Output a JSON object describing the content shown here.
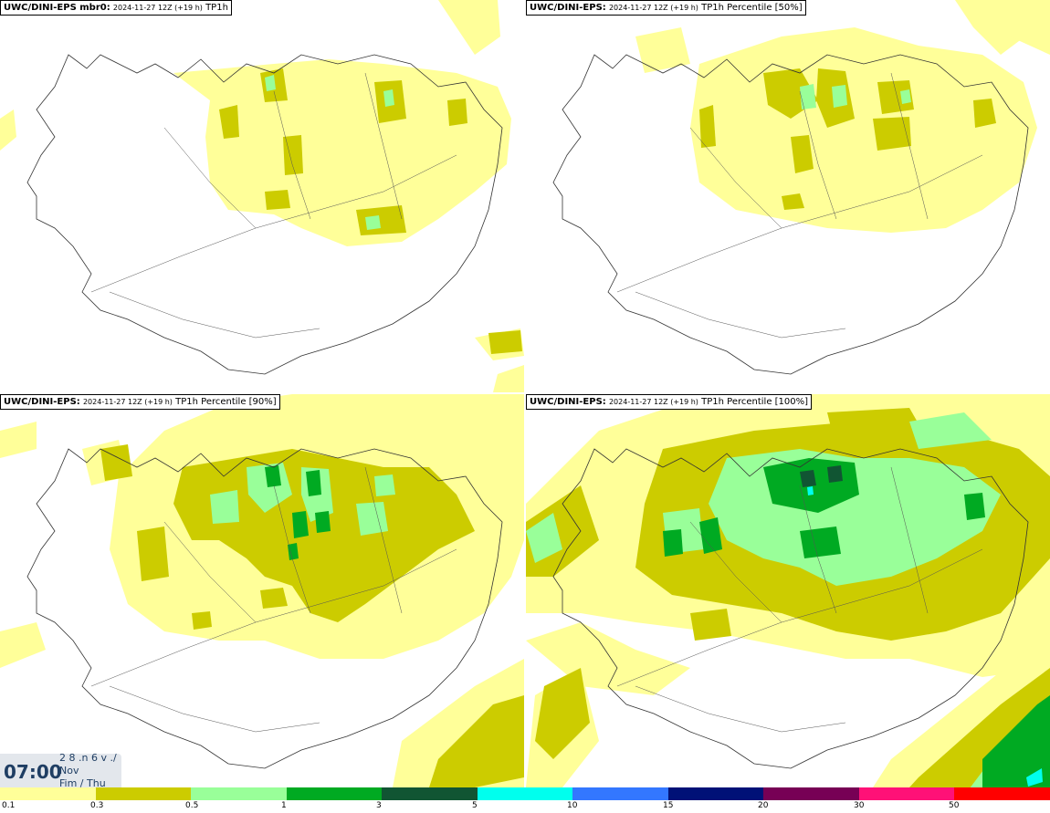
{
  "panels": [
    {
      "model": "UWC/DINI-EPS mbr0",
      "run": "2024-11-27 12Z (+19 h)",
      "field": "TP1h"
    },
    {
      "model": "UWC/DINI-EPS",
      "run": "2024-11-27 12Z (+19 h)",
      "field": "TP1h Percentile [50%]"
    },
    {
      "model": "UWC/DINI-EPS",
      "run": "2024-11-27 12Z (+19 h)",
      "field": "TP1h Percentile [90%]"
    },
    {
      "model": "UWC/DINI-EPS",
      "run": "2024-11-27 12Z (+19 h)",
      "field": "TP1h Percentile [100%]"
    }
  ],
  "time": {
    "clock": "07:00",
    "date_line1": "2 8 .n 6 v ./",
    "date_line2": "Nov",
    "date_line3": "Fim / Thu"
  },
  "legend": {
    "labels": [
      "0.1",
      "0.3",
      "0.5",
      "1",
      "3",
      "5",
      "10",
      "15",
      "20",
      "30",
      "50"
    ],
    "colors": [
      "#ffff99",
      "#cccc00",
      "#99ff99",
      "#00aa22",
      "#115533",
      "#00ffee",
      "#3377ff",
      "#001177",
      "#770055",
      "#ff1177",
      "#ff0000"
    ]
  },
  "colors": {
    "light_yellow": "#ffff99",
    "olive": "#cccc00",
    "light_green": "#99ff99",
    "green": "#00aa22",
    "dark_green": "#115533"
  }
}
